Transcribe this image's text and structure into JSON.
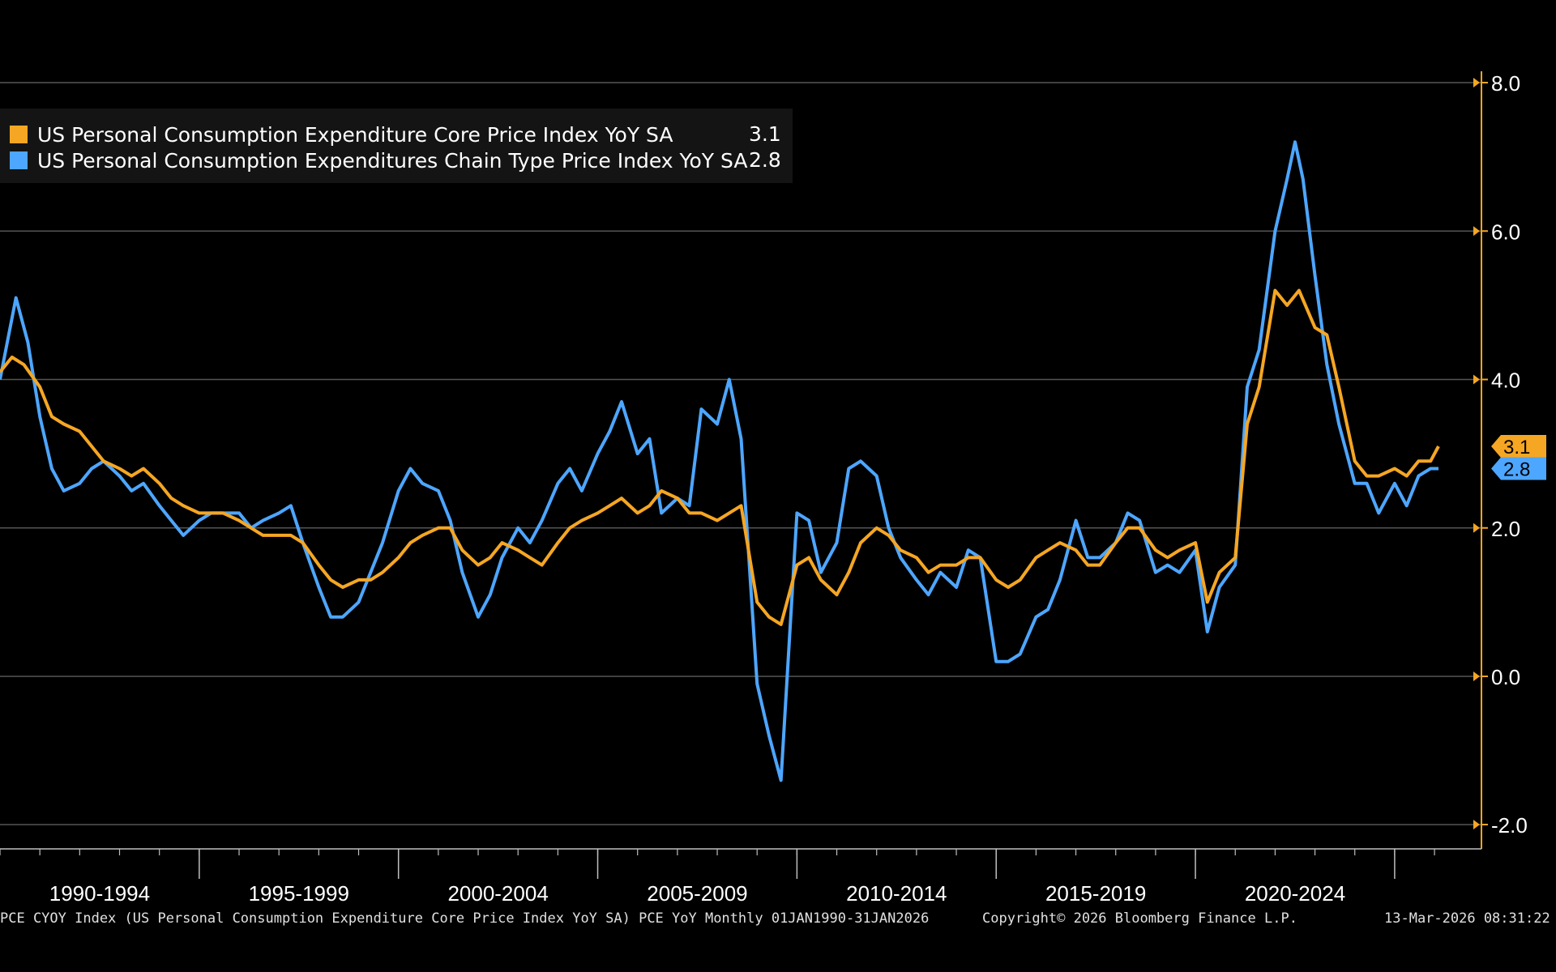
{
  "chart_data": {
    "type": "line",
    "title": "",
    "xlabel": "",
    "ylabel": "",
    "ylim": [
      -2.2,
      8.0
    ],
    "yticks": [
      "8.0",
      "6.0",
      "4.0",
      "2.0",
      "0.0",
      "-2.0"
    ],
    "ytick_values": [
      8,
      6,
      4,
      2,
      0,
      -2
    ],
    "x_range": [
      1990.0,
      2026.1
    ],
    "x_period_labels": [
      "1990-1994",
      "1995-1999",
      "2000-2004",
      "2005-2009",
      "2010-2014",
      "2015-2019",
      "2020-2024"
    ],
    "x_period_starts": [
      1990,
      1995,
      2000,
      2005,
      2010,
      2015,
      2020
    ],
    "grid": true,
    "legend_position": "top-left",
    "series": [
      {
        "name": "US Personal Consumption Expenditure Core Price Index YoY SA",
        "color": "#f5a623",
        "last_value": "3.1",
        "points": [
          [
            1990.0,
            4.1
          ],
          [
            1990.3,
            4.3
          ],
          [
            1990.6,
            4.2
          ],
          [
            1991.0,
            3.9
          ],
          [
            1991.3,
            3.5
          ],
          [
            1991.6,
            3.4
          ],
          [
            1992.0,
            3.3
          ],
          [
            1992.3,
            3.1
          ],
          [
            1992.6,
            2.9
          ],
          [
            1993.0,
            2.8
          ],
          [
            1993.3,
            2.7
          ],
          [
            1993.6,
            2.8
          ],
          [
            1994.0,
            2.6
          ],
          [
            1994.3,
            2.4
          ],
          [
            1994.6,
            2.3
          ],
          [
            1995.0,
            2.2
          ],
          [
            1995.3,
            2.2
          ],
          [
            1995.6,
            2.2
          ],
          [
            1996.0,
            2.1
          ],
          [
            1996.3,
            2.0
          ],
          [
            1996.6,
            1.9
          ],
          [
            1997.0,
            1.9
          ],
          [
            1997.3,
            1.9
          ],
          [
            1997.6,
            1.8
          ],
          [
            1998.0,
            1.5
          ],
          [
            1998.3,
            1.3
          ],
          [
            1998.6,
            1.2
          ],
          [
            1999.0,
            1.3
          ],
          [
            1999.3,
            1.3
          ],
          [
            1999.6,
            1.4
          ],
          [
            2000.0,
            1.6
          ],
          [
            2000.3,
            1.8
          ],
          [
            2000.6,
            1.9
          ],
          [
            2001.0,
            2.0
          ],
          [
            2001.3,
            2.0
          ],
          [
            2001.6,
            1.7
          ],
          [
            2002.0,
            1.5
          ],
          [
            2002.3,
            1.6
          ],
          [
            2002.6,
            1.8
          ],
          [
            2003.0,
            1.7
          ],
          [
            2003.3,
            1.6
          ],
          [
            2003.6,
            1.5
          ],
          [
            2004.0,
            1.8
          ],
          [
            2004.3,
            2.0
          ],
          [
            2004.6,
            2.1
          ],
          [
            2005.0,
            2.2
          ],
          [
            2005.3,
            2.3
          ],
          [
            2005.6,
            2.4
          ],
          [
            2006.0,
            2.2
          ],
          [
            2006.3,
            2.3
          ],
          [
            2006.6,
            2.5
          ],
          [
            2007.0,
            2.4
          ],
          [
            2007.3,
            2.2
          ],
          [
            2007.6,
            2.2
          ],
          [
            2008.0,
            2.1
          ],
          [
            2008.3,
            2.2
          ],
          [
            2008.6,
            2.3
          ],
          [
            2009.0,
            1.0
          ],
          [
            2009.3,
            0.8
          ],
          [
            2009.6,
            0.7
          ],
          [
            2010.0,
            1.5
          ],
          [
            2010.3,
            1.6
          ],
          [
            2010.6,
            1.3
          ],
          [
            2011.0,
            1.1
          ],
          [
            2011.3,
            1.4
          ],
          [
            2011.6,
            1.8
          ],
          [
            2012.0,
            2.0
          ],
          [
            2012.3,
            1.9
          ],
          [
            2012.6,
            1.7
          ],
          [
            2013.0,
            1.6
          ],
          [
            2013.3,
            1.4
          ],
          [
            2013.6,
            1.5
          ],
          [
            2014.0,
            1.5
          ],
          [
            2014.3,
            1.6
          ],
          [
            2014.6,
            1.6
          ],
          [
            2015.0,
            1.3
          ],
          [
            2015.3,
            1.2
          ],
          [
            2015.6,
            1.3
          ],
          [
            2016.0,
            1.6
          ],
          [
            2016.3,
            1.7
          ],
          [
            2016.6,
            1.8
          ],
          [
            2017.0,
            1.7
          ],
          [
            2017.3,
            1.5
          ],
          [
            2017.6,
            1.5
          ],
          [
            2018.0,
            1.8
          ],
          [
            2018.3,
            2.0
          ],
          [
            2018.6,
            2.0
          ],
          [
            2019.0,
            1.7
          ],
          [
            2019.3,
            1.6
          ],
          [
            2019.6,
            1.7
          ],
          [
            2020.0,
            1.8
          ],
          [
            2020.3,
            1.0
          ],
          [
            2020.6,
            1.4
          ],
          [
            2021.0,
            1.6
          ],
          [
            2021.3,
            3.4
          ],
          [
            2021.6,
            3.9
          ],
          [
            2022.0,
            5.2
          ],
          [
            2022.3,
            5.0
          ],
          [
            2022.6,
            5.2
          ],
          [
            2023.0,
            4.7
          ],
          [
            2023.3,
            4.6
          ],
          [
            2023.6,
            3.9
          ],
          [
            2024.0,
            2.9
          ],
          [
            2024.3,
            2.7
          ],
          [
            2024.6,
            2.7
          ],
          [
            2025.0,
            2.8
          ],
          [
            2025.3,
            2.7
          ],
          [
            2025.6,
            2.9
          ],
          [
            2025.9,
            2.9
          ],
          [
            2026.1,
            3.1
          ]
        ]
      },
      {
        "name": "US Personal Consumption Expenditures Chain Type Price Index YoY SA",
        "color": "#4da6ff",
        "last_value": "2.8",
        "points": [
          [
            1990.0,
            4.0
          ],
          [
            1990.4,
            5.1
          ],
          [
            1990.7,
            4.5
          ],
          [
            1991.0,
            3.5
          ],
          [
            1991.3,
            2.8
          ],
          [
            1991.6,
            2.5
          ],
          [
            1992.0,
            2.6
          ],
          [
            1992.3,
            2.8
          ],
          [
            1992.6,
            2.9
          ],
          [
            1993.0,
            2.7
          ],
          [
            1993.3,
            2.5
          ],
          [
            1993.6,
            2.6
          ],
          [
            1994.0,
            2.3
          ],
          [
            1994.3,
            2.1
          ],
          [
            1994.6,
            1.9
          ],
          [
            1995.0,
            2.1
          ],
          [
            1995.3,
            2.2
          ],
          [
            1995.6,
            2.2
          ],
          [
            1996.0,
            2.2
          ],
          [
            1996.3,
            2.0
          ],
          [
            1996.6,
            2.1
          ],
          [
            1997.0,
            2.2
          ],
          [
            1997.3,
            2.3
          ],
          [
            1997.6,
            1.8
          ],
          [
            1998.0,
            1.2
          ],
          [
            1998.3,
            0.8
          ],
          [
            1998.6,
            0.8
          ],
          [
            1999.0,
            1.0
          ],
          [
            1999.3,
            1.4
          ],
          [
            1999.6,
            1.8
          ],
          [
            2000.0,
            2.5
          ],
          [
            2000.3,
            2.8
          ],
          [
            2000.6,
            2.6
          ],
          [
            2001.0,
            2.5
          ],
          [
            2001.3,
            2.1
          ],
          [
            2001.6,
            1.4
          ],
          [
            2002.0,
            0.8
          ],
          [
            2002.3,
            1.1
          ],
          [
            2002.6,
            1.6
          ],
          [
            2003.0,
            2.0
          ],
          [
            2003.3,
            1.8
          ],
          [
            2003.6,
            2.1
          ],
          [
            2004.0,
            2.6
          ],
          [
            2004.3,
            2.8
          ],
          [
            2004.6,
            2.5
          ],
          [
            2005.0,
            3.0
          ],
          [
            2005.3,
            3.3
          ],
          [
            2005.6,
            3.7
          ],
          [
            2006.0,
            3.0
          ],
          [
            2006.3,
            3.2
          ],
          [
            2006.6,
            2.2
          ],
          [
            2007.0,
            2.4
          ],
          [
            2007.3,
            2.3
          ],
          [
            2007.6,
            3.6
          ],
          [
            2008.0,
            3.4
          ],
          [
            2008.3,
            4.0
          ],
          [
            2008.6,
            3.2
          ],
          [
            2009.0,
            -0.1
          ],
          [
            2009.3,
            -0.8
          ],
          [
            2009.6,
            -1.4
          ],
          [
            2010.0,
            2.2
          ],
          [
            2010.3,
            2.1
          ],
          [
            2010.6,
            1.4
          ],
          [
            2011.0,
            1.8
          ],
          [
            2011.3,
            2.8
          ],
          [
            2011.6,
            2.9
          ],
          [
            2012.0,
            2.7
          ],
          [
            2012.3,
            2.0
          ],
          [
            2012.6,
            1.6
          ],
          [
            2013.0,
            1.3
          ],
          [
            2013.3,
            1.1
          ],
          [
            2013.6,
            1.4
          ],
          [
            2014.0,
            1.2
          ],
          [
            2014.3,
            1.7
          ],
          [
            2014.6,
            1.6
          ],
          [
            2015.0,
            0.2
          ],
          [
            2015.3,
            0.2
          ],
          [
            2015.6,
            0.3
          ],
          [
            2016.0,
            0.8
          ],
          [
            2016.3,
            0.9
          ],
          [
            2016.6,
            1.3
          ],
          [
            2017.0,
            2.1
          ],
          [
            2017.3,
            1.6
          ],
          [
            2017.6,
            1.6
          ],
          [
            2018.0,
            1.8
          ],
          [
            2018.3,
            2.2
          ],
          [
            2018.6,
            2.1
          ],
          [
            2019.0,
            1.4
          ],
          [
            2019.3,
            1.5
          ],
          [
            2019.6,
            1.4
          ],
          [
            2020.0,
            1.7
          ],
          [
            2020.3,
            0.6
          ],
          [
            2020.6,
            1.2
          ],
          [
            2021.0,
            1.5
          ],
          [
            2021.3,
            3.9
          ],
          [
            2021.6,
            4.4
          ],
          [
            2022.0,
            6.0
          ],
          [
            2022.3,
            6.7
          ],
          [
            2022.5,
            7.2
          ],
          [
            2022.7,
            6.7
          ],
          [
            2023.0,
            5.4
          ],
          [
            2023.3,
            4.2
          ],
          [
            2023.6,
            3.4
          ],
          [
            2024.0,
            2.6
          ],
          [
            2024.3,
            2.6
          ],
          [
            2024.6,
            2.2
          ],
          [
            2025.0,
            2.6
          ],
          [
            2025.3,
            2.3
          ],
          [
            2025.6,
            2.7
          ],
          [
            2025.9,
            2.8
          ],
          [
            2026.1,
            2.8
          ]
        ]
      }
    ]
  },
  "footer": {
    "left": "PCE CYOY Index (US Personal Consumption Expenditure Core Price Index YoY SA) PCE YoY Monthly 01JAN1990-31JAN2026",
    "center": "Copyright© 2026 Bloomberg Finance L.P.",
    "right": "13-Mar-2026 08:31:22"
  },
  "colors": {
    "background": "#000000",
    "grid": "#555555",
    "axis": "#f5a623",
    "core": "#f5a623",
    "headline": "#4da6ff"
  }
}
